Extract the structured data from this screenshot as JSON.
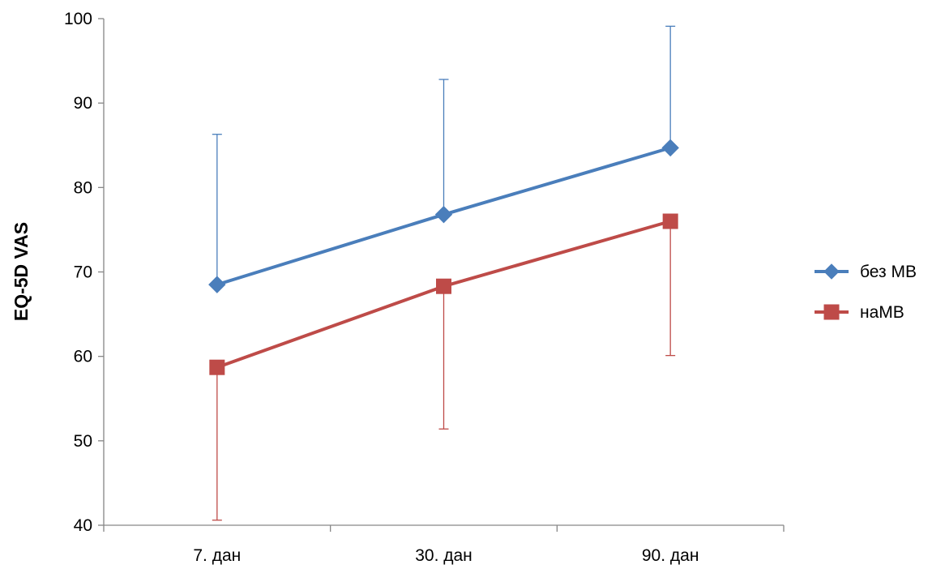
{
  "chart_data": {
    "type": "line",
    "title": "",
    "xlabel": "",
    "ylabel": "EQ-5D VAS",
    "ylim": [
      40,
      100
    ],
    "yticks": [
      40,
      50,
      60,
      70,
      80,
      90,
      100
    ],
    "categories": [
      "7. дан",
      "30. дан",
      "90. дан"
    ],
    "grid": false,
    "legend_position": "right",
    "series": [
      {
        "name": "без МВ",
        "color": "#4a7ebb",
        "marker": "diamond",
        "values": [
          68.5,
          76.8,
          84.7
        ],
        "error_upper": [
          86.3,
          92.8,
          99.1
        ]
      },
      {
        "name": "наМВ",
        "color": "#be4b48",
        "marker": "square",
        "values": [
          58.7,
          68.3,
          76.0
        ],
        "error_lower": [
          40.6,
          51.4,
          60.1
        ]
      }
    ]
  }
}
